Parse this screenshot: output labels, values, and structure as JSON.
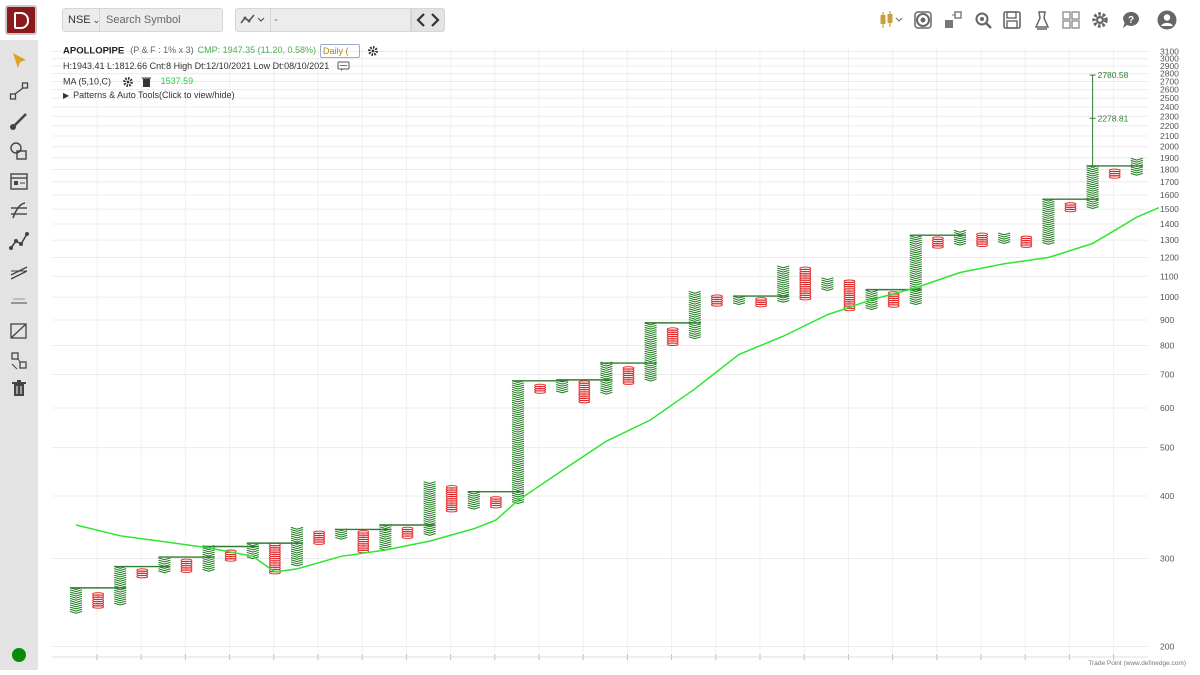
{
  "topbar": {
    "exchange": "NSE",
    "search_placeholder": "Search Symbol",
    "compare_value": "-"
  },
  "info": {
    "symbol": "APOLLOPIPE",
    "params": "(P & F : 1% x 3)",
    "cmp": "CMP: 1947.35 (11.20, 0.58%)",
    "timeframe": "Daily (",
    "stats": "H:1943.41 L:1812.66 Cnt:8 High Dt:12/10/2021 Low Dt:08/10/2021",
    "ma_label": "MA (5,10,C)",
    "ma_value": "1537.59",
    "patterns": "Patterns & Auto Tools(Click to view/hide)"
  },
  "watermark": "Trade Point (www.definedge.com)",
  "colors": {
    "x_column": "#1b7a1b",
    "o_column": "#e02424",
    "ma_line": "#2ee62e",
    "projection": "#2e7d32",
    "logo": "#8b1a1a"
  },
  "icons": {
    "top": [
      "candlestick-icon",
      "camera-icon",
      "layout-icon",
      "scanner-icon",
      "save-icon",
      "lab-icon",
      "grid-icon",
      "gear-icon",
      "help-icon",
      "user-icon"
    ],
    "left": [
      "cursor-icon",
      "trendline-icon",
      "brush-icon",
      "shapes-icon",
      "calendar-icon",
      "fib-icon",
      "pattern-icon",
      "channel-icon",
      "measure-icon",
      "projection-icon",
      "magnet-icon",
      "trash-icon"
    ]
  },
  "chart_data": {
    "type": "point-and-figure",
    "scale": "log",
    "box_pct": 1,
    "reversal": 3,
    "y_ticks": [
      200,
      300,
      400,
      500,
      600,
      700,
      800,
      900,
      1000,
      1100,
      1200,
      1300,
      1400,
      1500,
      1600,
      1700,
      1800,
      1900,
      2000,
      2100,
      2200,
      2300,
      2400,
      2500,
      2600,
      2700,
      2800,
      2900,
      3000,
      3100
    ],
    "ylim": [
      195,
      3150
    ],
    "columns": [
      {
        "type": "X",
        "low": 234,
        "high": 262
      },
      {
        "type": "O",
        "low": 240,
        "high": 256
      },
      {
        "type": "X",
        "low": 243,
        "high": 289
      },
      {
        "type": "O",
        "low": 276,
        "high": 285
      },
      {
        "type": "X",
        "low": 282,
        "high": 302
      },
      {
        "type": "O",
        "low": 283,
        "high": 300
      },
      {
        "type": "X",
        "low": 284,
        "high": 317
      },
      {
        "type": "O",
        "low": 298,
        "high": 313
      },
      {
        "type": "X",
        "low": 301,
        "high": 322
      },
      {
        "type": "O",
        "low": 281,
        "high": 321
      },
      {
        "type": "X",
        "low": 291,
        "high": 346
      },
      {
        "type": "O",
        "low": 322,
        "high": 341
      },
      {
        "type": "X",
        "low": 329,
        "high": 343
      },
      {
        "type": "O",
        "low": 310,
        "high": 340
      },
      {
        "type": "X",
        "low": 313,
        "high": 350
      },
      {
        "type": "O",
        "low": 331,
        "high": 346
      },
      {
        "type": "X",
        "low": 335,
        "high": 428
      },
      {
        "type": "O",
        "low": 374,
        "high": 421
      },
      {
        "type": "X",
        "low": 378,
        "high": 408
      },
      {
        "type": "O",
        "low": 381,
        "high": 400
      },
      {
        "type": "X",
        "low": 388,
        "high": 680
      },
      {
        "type": "O",
        "low": 646,
        "high": 670
      },
      {
        "type": "X",
        "low": 646,
        "high": 683
      },
      {
        "type": "O",
        "low": 618,
        "high": 678
      },
      {
        "type": "X",
        "low": 642,
        "high": 738
      },
      {
        "type": "O",
        "low": 673,
        "high": 728
      },
      {
        "type": "X",
        "low": 682,
        "high": 888
      },
      {
        "type": "O",
        "low": 805,
        "high": 864
      },
      {
        "type": "X",
        "low": 829,
        "high": 1022
      },
      {
        "type": "O",
        "low": 965,
        "high": 1010
      },
      {
        "type": "X",
        "low": 970,
        "high": 1005
      },
      {
        "type": "O",
        "low": 962,
        "high": 995
      },
      {
        "type": "X",
        "low": 980,
        "high": 1160
      },
      {
        "type": "O",
        "low": 993,
        "high": 1150
      },
      {
        "type": "X",
        "low": 1035,
        "high": 1095
      },
      {
        "type": "O",
        "low": 945,
        "high": 1085
      },
      {
        "type": "X",
        "low": 948,
        "high": 1035
      },
      {
        "type": "O",
        "low": 960,
        "high": 1025
      },
      {
        "type": "X",
        "low": 970,
        "high": 1330
      },
      {
        "type": "O",
        "low": 1260,
        "high": 1320
      },
      {
        "type": "X",
        "low": 1275,
        "high": 1355
      },
      {
        "type": "O",
        "low": 1270,
        "high": 1335
      },
      {
        "type": "X",
        "low": 1285,
        "high": 1340
      },
      {
        "type": "O",
        "low": 1265,
        "high": 1320
      },
      {
        "type": "X",
        "low": 1280,
        "high": 1570
      },
      {
        "type": "O",
        "low": 1490,
        "high": 1550
      },
      {
        "type": "X",
        "low": 1510,
        "high": 1830
      },
      {
        "type": "O",
        "low": 1740,
        "high": 1810
      },
      {
        "type": "X",
        "low": 1760,
        "high": 1890
      }
    ],
    "ma_series": [
      {
        "col": 0,
        "value": 350
      },
      {
        "col": 2,
        "value": 333
      },
      {
        "col": 4,
        "value": 324
      },
      {
        "col": 6,
        "value": 315
      },
      {
        "col": 8,
        "value": 303
      },
      {
        "col": 9,
        "value": 282
      },
      {
        "col": 10,
        "value": 286
      },
      {
        "col": 12,
        "value": 303
      },
      {
        "col": 14,
        "value": 312
      },
      {
        "col": 16,
        "value": 325
      },
      {
        "col": 18,
        "value": 344
      },
      {
        "col": 19,
        "value": 358
      },
      {
        "col": 20,
        "value": 392
      },
      {
        "col": 22,
        "value": 450
      },
      {
        "col": 24,
        "value": 515
      },
      {
        "col": 26,
        "value": 568
      },
      {
        "col": 28,
        "value": 655
      },
      {
        "col": 30,
        "value": 768
      },
      {
        "col": 32,
        "value": 835
      },
      {
        "col": 34,
        "value": 922
      },
      {
        "col": 36,
        "value": 988
      },
      {
        "col": 38,
        "value": 1044
      },
      {
        "col": 40,
        "value": 1120
      },
      {
        "col": 42,
        "value": 1166
      },
      {
        "col": 44,
        "value": 1200
      },
      {
        "col": 46,
        "value": 1280
      },
      {
        "col": 48,
        "value": 1445
      },
      {
        "col": 49,
        "value": 1510
      }
    ],
    "resistance_marks": [
      {
        "col": 0,
        "value": 262
      },
      {
        "col": 2,
        "value": 289
      },
      {
        "col": 4,
        "value": 302
      },
      {
        "col": 6,
        "value": 317
      },
      {
        "col": 8,
        "value": 322
      },
      {
        "col": 12,
        "value": 343
      },
      {
        "col": 14,
        "value": 350
      },
      {
        "col": 18,
        "value": 408
      },
      {
        "col": 20,
        "value": 680
      },
      {
        "col": 22,
        "value": 683
      },
      {
        "col": 24,
        "value": 738
      },
      {
        "col": 26,
        "value": 888
      },
      {
        "col": 30,
        "value": 1005
      },
      {
        "col": 36,
        "value": 1035
      },
      {
        "col": 38,
        "value": 1330
      },
      {
        "col": 44,
        "value": 1570
      },
      {
        "col": 46,
        "value": 1830
      }
    ],
    "targets": [
      {
        "label": "2780.58",
        "value": 2780.58
      },
      {
        "label": "2278.81",
        "value": 2278.81
      }
    ]
  }
}
